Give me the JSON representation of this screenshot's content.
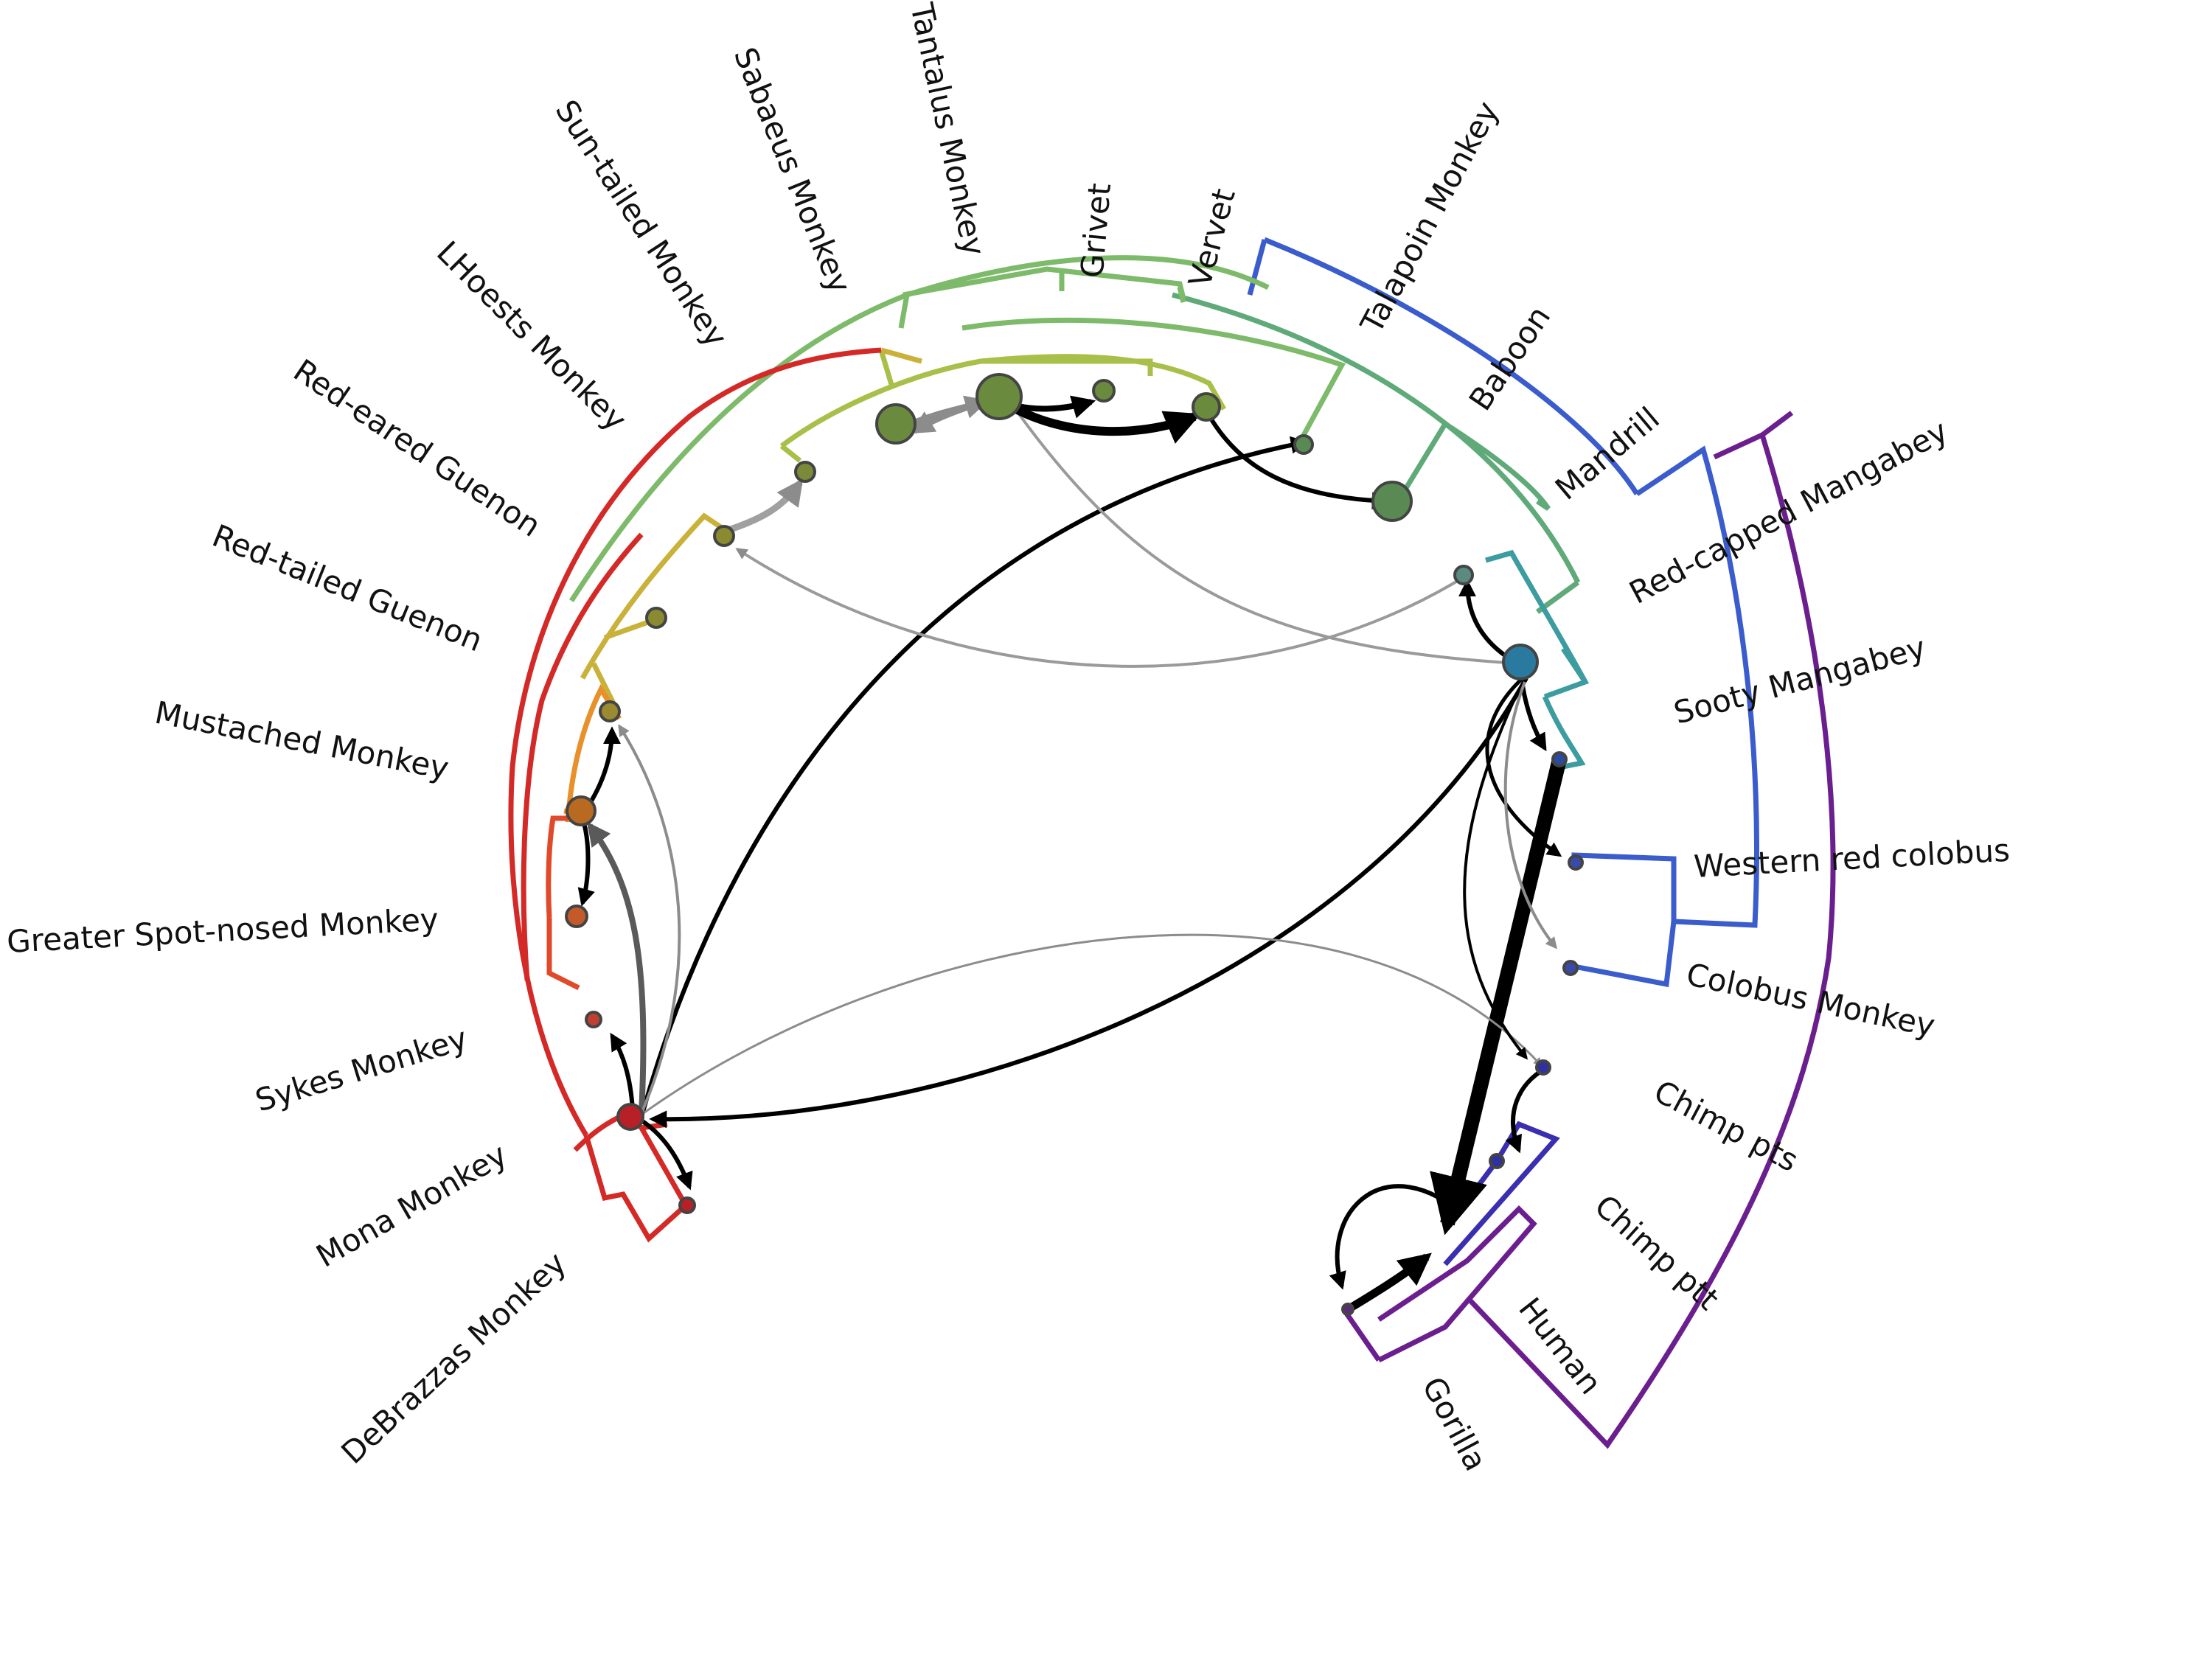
{
  "labels": [
    "Tantalus Monkey",
    "Grivet",
    "Vervet",
    "Talapoin Monkey",
    "Sabaeus Monkey",
    "Sun-tailed Monkey",
    "LHoests Monkey",
    "Red-eared Guenon",
    "Red-tailed Guenon",
    "Mustached Monkey",
    "Greater Spot-nosed Monkey",
    "Sykes Monkey",
    "Mona Monkey",
    "DeBrazzas Monkey",
    "Baboon",
    "Mandrill",
    "Red-capped Mangabey",
    "Sooty Mangabey",
    "Western red colobus",
    "Colobus Monkey",
    "Chimp pts",
    "Chimp ptt",
    "Human",
    "Gorilla"
  ],
  "colors": {
    "red": "#d42a27",
    "red_orange": "#e04a2a",
    "orange": "#e8902a",
    "yellow": "#c9b13a",
    "yellow_green": "#a8c04a",
    "green": "#7dba6a",
    "teal_green": "#5faa78",
    "teal": "#3c9ca0",
    "blue": "#3a5ccc",
    "indigo": "#3a2fb0",
    "purple": "#6b1f8f"
  },
  "node_colors": {
    "n1": "#6a8a3e",
    "n2": "#6a8a3e",
    "n3": "#6a8a3e",
    "n4": "#6a8a3e",
    "n5": "#6a8a3e",
    "n6": "#5a8a54",
    "n7": "#5a8a54",
    "n8": "#7a8a38",
    "n9": "#8a8a30",
    "n10": "#8a8a30",
    "n11": "#9a8a30",
    "n12": "#b86a20",
    "n13": "#c45a2a",
    "n14": "#c04030",
    "n15": "#b82028",
    "n16": "#b82028",
    "n17": "#5a8a80",
    "n18": "#2a7aa0",
    "n19": "#2a4aa0",
    "n20": "#3a4aa8",
    "n21": "#3a4aa8",
    "n22": "#3030a0",
    "n23": "#3030a0",
    "n24": "#5a2a7a"
  }
}
